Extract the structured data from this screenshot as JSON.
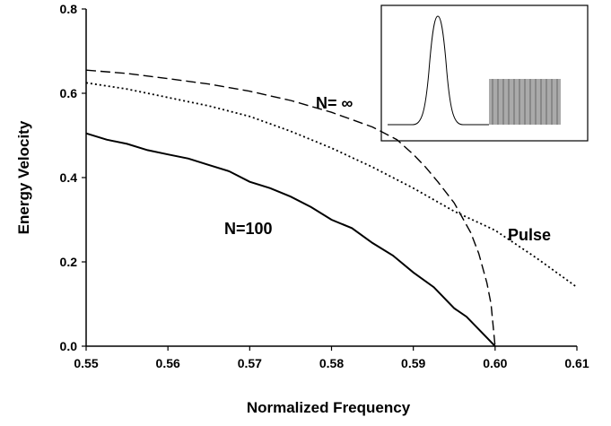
{
  "chart_data": {
    "type": "line",
    "xlabel": "Normalized Frequency",
    "ylabel": "Energy Velocity",
    "xlim": [
      0.55,
      0.61
    ],
    "ylim": [
      0,
      0.8
    ],
    "xticks": [
      0.55,
      0.56,
      0.57,
      0.58,
      0.59,
      {
        "value": 0.6,
        "label": "0.60"
      },
      0.61
    ],
    "yticks": [
      {
        "value": 0,
        "label": "0.0"
      },
      0.2,
      0.4,
      0.6,
      0.8
    ],
    "annotations": [
      "N= ∞",
      "N=100",
      "Pulse"
    ],
    "series": [
      {
        "color": "#000000",
        "style": "solid",
        "x": [
          0.55,
          0.5525,
          0.555,
          0.5575,
          0.56,
          0.5625,
          0.565,
          0.5675,
          0.57,
          0.5725,
          0.575,
          0.5775,
          0.58,
          0.5825,
          0.585,
          0.5875,
          0.59,
          0.5925,
          0.595,
          0.5965,
          0.598,
          0.599,
          0.6
        ],
        "values": [
          0.505,
          0.49,
          0.48,
          0.465,
          0.455,
          0.445,
          0.43,
          0.415,
          0.39,
          0.375,
          0.355,
          0.33,
          0.3,
          0.28,
          0.245,
          0.215,
          0.175,
          0.14,
          0.09,
          0.07,
          0.04,
          0.02,
          0.0
        ]
      },
      {
        "color": "#000000",
        "style": "dashed",
        "x": [
          0.55,
          0.555,
          0.56,
          0.565,
          0.57,
          0.575,
          0.58,
          0.585,
          0.588,
          0.59,
          0.5915,
          0.593,
          0.595,
          0.597,
          0.598,
          0.599,
          0.5995,
          0.6
        ],
        "values": [
          0.655,
          0.647,
          0.635,
          0.622,
          0.605,
          0.583,
          0.555,
          0.52,
          0.49,
          0.455,
          0.425,
          0.39,
          0.34,
          0.27,
          0.22,
          0.15,
          0.1,
          0.0
        ]
      },
      {
        "color": "#000000",
        "style": "dotted",
        "x": [
          0.55,
          0.555,
          0.56,
          0.565,
          0.57,
          0.575,
          0.58,
          0.585,
          0.59,
          0.595,
          0.6,
          0.605,
          0.61
        ],
        "values": [
          0.625,
          0.61,
          0.59,
          0.57,
          0.545,
          0.51,
          0.47,
          0.425,
          0.375,
          0.32,
          0.275,
          0.21,
          0.14
        ]
      }
    ]
  }
}
